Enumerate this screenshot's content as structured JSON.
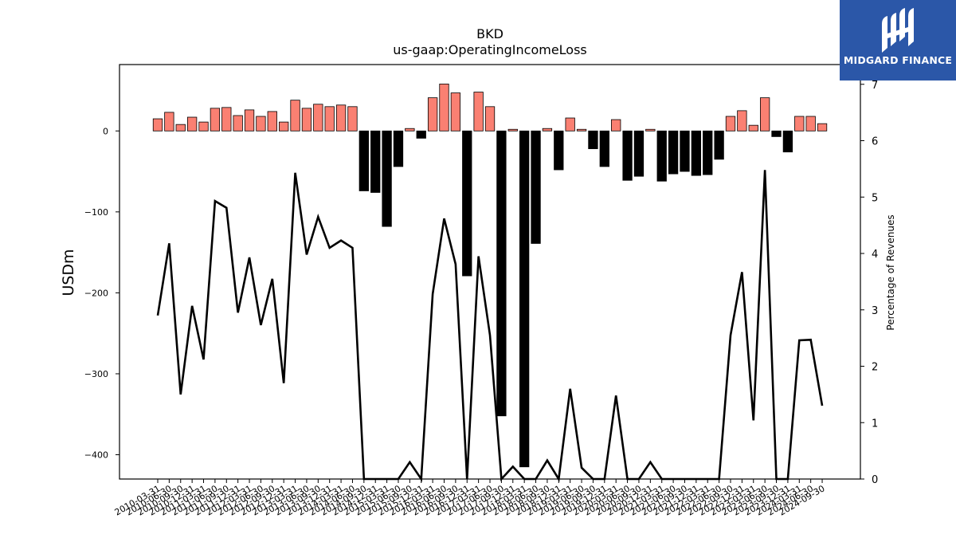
{
  "chart_data": {
    "type": "bar",
    "title": "BKD",
    "subtitle": "us-gaap:OperatingIncomeLoss",
    "ylabel": "USDm",
    "ylabel_right": "Percentage of Revenues",
    "ylim": [
      -430,
      82
    ],
    "ylim_right": [
      0,
      7.35
    ],
    "yticks": [
      -400,
      -300,
      -200,
      -100,
      0
    ],
    "yticks_right": [
      0,
      1,
      2,
      3,
      4,
      5,
      6,
      7
    ],
    "colors": {
      "positive": "#fa8072",
      "negative": "#000000",
      "line": "#000000"
    },
    "categories": [
      "2010-03-31",
      "2010-06-30",
      "2010-09-30",
      "2010-12-31",
      "2011-03-31",
      "2011-06-30",
      "2011-09-30",
      "2011-12-31",
      "2012-03-31",
      "2012-06-30",
      "2012-09-30",
      "2012-12-31",
      "2013-03-31",
      "2013-06-30",
      "2013-09-30",
      "2013-12-31",
      "2014-03-31",
      "2014-06-30",
      "2014-09-30",
      "2014-12-31",
      "2015-03-31",
      "2015-06-30",
      "2015-09-30",
      "2015-12-31",
      "2016-03-31",
      "2016-06-30",
      "2016-09-30",
      "2016-12-31",
      "2017-03-31",
      "2017-06-30",
      "2017-09-30",
      "2017-12-31",
      "2018-03-31",
      "2018-06-30",
      "2018-09-30",
      "2018-12-31",
      "2019-03-31",
      "2019-06-30",
      "2019-09-30",
      "2019-12-31",
      "2020-03-31",
      "2020-06-30",
      "2020-09-30",
      "2020-12-31",
      "2021-03-31",
      "2021-06-30",
      "2021-09-30",
      "2021-12-31",
      "2022-03-31",
      "2022-06-30",
      "2022-09-30",
      "2022-12-31",
      "2023-03-31",
      "2023-06-30",
      "2023-09-30",
      "2023-12-31",
      "2024-03-31",
      "2024-06-30",
      "2024-09-30"
    ],
    "values": [
      15,
      23,
      8,
      17,
      11,
      28,
      29,
      19,
      26,
      18,
      24,
      11,
      38,
      28,
      33,
      30,
      32,
      30,
      -74,
      -76,
      -118,
      -44,
      3,
      -9,
      41,
      58,
      47,
      -179,
      48,
      30,
      -352,
      2,
      -415,
      -139,
      3,
      -48,
      16,
      2,
      -22,
      -44,
      14,
      -61,
      -56,
      2,
      -62,
      -53,
      -50,
      -55,
      -54,
      -35,
      18,
      25,
      7,
      41,
      -7,
      -26,
      18,
      18,
      9
    ],
    "pct_of_revenues": [
      2.9,
      4.18,
      1.5,
      3.07,
      2.12,
      4.93,
      4.81,
      2.95,
      3.93,
      2.73,
      3.55,
      1.7,
      5.43,
      3.98,
      4.65,
      4.1,
      4.23,
      4.1,
      0,
      0,
      0,
      0,
      0.3,
      0,
      3.28,
      4.62,
      3.81,
      0,
      3.95,
      2.55,
      0,
      0.22,
      0,
      0,
      0.33,
      0,
      1.6,
      0.2,
      0,
      0,
      1.48,
      0,
      0,
      0.3,
      0,
      0,
      0,
      0,
      0,
      0,
      2.55,
      3.67,
      1.04,
      5.48,
      0,
      0,
      2.46,
      2.47,
      1.3
    ],
    "grid": false,
    "legend": "none"
  },
  "logo": {
    "text": "MIDGARD FINANCE"
  }
}
